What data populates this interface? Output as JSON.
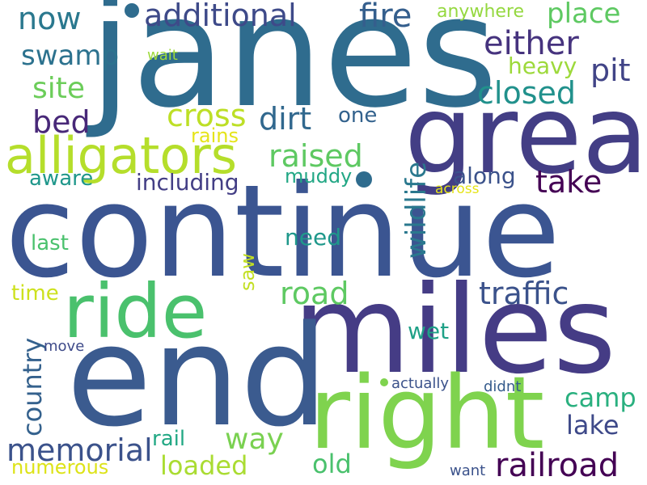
{
  "words": [
    {
      "text": "janes",
      "color": "#2f6c8e"
    },
    {
      "text": "continue",
      "color": "#3b5591"
    },
    {
      "text": "miles",
      "color": "#453c85"
    },
    {
      "text": "end",
      "color": "#3b5b8f"
    },
    {
      "text": "great",
      "color": "#433e85"
    },
    {
      "text": "right",
      "color": "#7fd34e"
    },
    {
      "text": "ride",
      "color": "#4ac16d"
    },
    {
      "text": "alligators",
      "color": "#b5de2b"
    },
    {
      "text": "railroad",
      "color": "#440154"
    },
    {
      "text": "additional",
      "color": "#3e4a89"
    },
    {
      "text": "fire",
      "color": "#355f8d"
    },
    {
      "text": "place",
      "color": "#5ec962"
    },
    {
      "text": "anywhere",
      "color": "#95d840"
    },
    {
      "text": "now",
      "color": "#2a788e"
    },
    {
      "text": "either",
      "color": "#46337e"
    },
    {
      "text": "swamp",
      "color": "#2c728e"
    },
    {
      "text": "wait",
      "color": "#9dd93b"
    },
    {
      "text": "heavy",
      "color": "#9dd93b"
    },
    {
      "text": "pit",
      "color": "#414487"
    },
    {
      "text": "site",
      "color": "#6ccd5a"
    },
    {
      "text": "closed",
      "color": "#21918c"
    },
    {
      "text": "cross",
      "color": "#bddf26"
    },
    {
      "text": "dirt",
      "color": "#31688e"
    },
    {
      "text": "one",
      "color": "#33628d"
    },
    {
      "text": "bed",
      "color": "#482878"
    },
    {
      "text": "rains",
      "color": "#e5e419"
    },
    {
      "text": "raised",
      "color": "#5ec962"
    },
    {
      "text": "wildlife",
      "color": "#2a788e"
    },
    {
      "text": "aware",
      "color": "#1f978b"
    },
    {
      "text": "muddy",
      "color": "#22a785"
    },
    {
      "text": "along",
      "color": "#3b528b"
    },
    {
      "text": "take",
      "color": "#440154"
    },
    {
      "text": "including",
      "color": "#433e85"
    },
    {
      "text": "across",
      "color": "#e5e419"
    },
    {
      "text": "last",
      "color": "#4ac16d"
    },
    {
      "text": "need",
      "color": "#1f988b"
    },
    {
      "text": "saw",
      "color": "#c2df23"
    },
    {
      "text": "time",
      "color": "#cde11d"
    },
    {
      "text": "road",
      "color": "#5ec962"
    },
    {
      "text": "traffic",
      "color": "#3b528b"
    },
    {
      "text": "country",
      "color": "#34618d"
    },
    {
      "text": "move",
      "color": "#3e4a89"
    },
    {
      "text": "wet",
      "color": "#1fa187"
    },
    {
      "text": "actually",
      "color": "#3b528b"
    },
    {
      "text": "didnt",
      "color": "#365c8d"
    },
    {
      "text": "camp",
      "color": "#2ab07f"
    },
    {
      "text": "lake",
      "color": "#3e4989"
    },
    {
      "text": "memorial",
      "color": "#3b528b"
    },
    {
      "text": "rail",
      "color": "#22a884"
    },
    {
      "text": "way",
      "color": "#7ad151"
    },
    {
      "text": "loaded",
      "color": "#aadc32"
    },
    {
      "text": "old",
      "color": "#4ac16d"
    },
    {
      "text": "numerous",
      "color": "#dde318"
    },
    {
      "text": "want",
      "color": "#3b528b"
    }
  ]
}
